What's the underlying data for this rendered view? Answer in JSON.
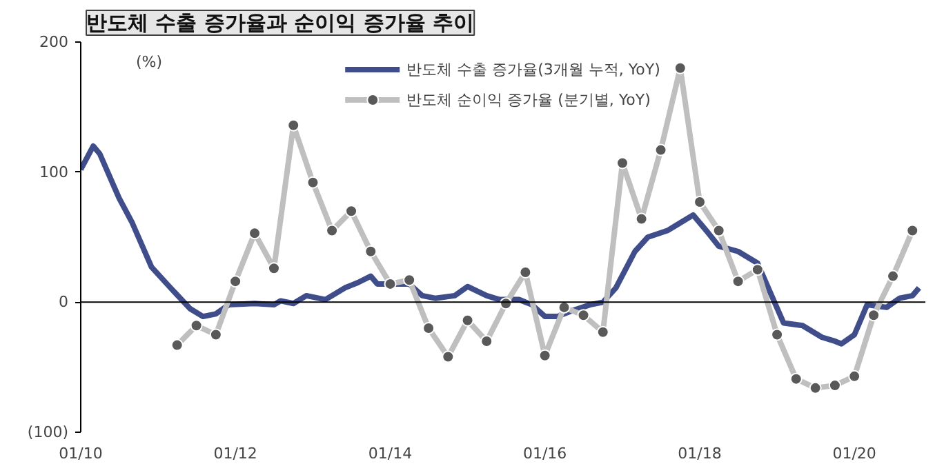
{
  "chart_data": {
    "type": "line",
    "title": "반도체 수출 증가율과 순이익 증가율 추이",
    "ylabel": "(%)",
    "xlim": [
      "2010-01",
      "2020-12"
    ],
    "ylim": [
      -100,
      200
    ],
    "xticks": [
      {
        "value": "2010-01",
        "label": "01/10"
      },
      {
        "value": "2012-01",
        "label": "01/12"
      },
      {
        "value": "2014-01",
        "label": "01/14"
      },
      {
        "value": "2016-01",
        "label": "01/16"
      },
      {
        "value": "2018-01",
        "label": "01/18"
      },
      {
        "value": "2020-01",
        "label": "01/20"
      }
    ],
    "yticks": [
      {
        "value": -100,
        "label": "(100)"
      },
      0,
      100,
      200
    ],
    "grid": false,
    "legend": "top",
    "ref_lines": [
      {
        "axis": "y",
        "value": 0
      }
    ],
    "series": [
      {
        "name": "반도체 수출 증가율(3개월 누적, YoY)",
        "color": "#3f4d8a",
        "marker": "none",
        "x": [
          "2010-01",
          "2010-03",
          "2010-04",
          "2010-07",
          "2010-09",
          "2010-12",
          "2011-03",
          "2011-06",
          "2011-08",
          "2011-10",
          "2011-12",
          "2012-04",
          "2012-07",
          "2012-08",
          "2012-10",
          "2012-12",
          "2013-03",
          "2013-06",
          "2013-08",
          "2013-10",
          "2013-11",
          "2014-01",
          "2014-04",
          "2014-06",
          "2014-08",
          "2014-11",
          "2015-01",
          "2015-04",
          "2015-06",
          "2015-09",
          "2015-11",
          "2016-01",
          "2016-03",
          "2016-05",
          "2016-08",
          "2016-10",
          "2016-12",
          "2017-03",
          "2017-05",
          "2017-08",
          "2017-10",
          "2017-12",
          "2018-02",
          "2018-04",
          "2018-07",
          "2018-10",
          "2018-12",
          "2019-02",
          "2019-05",
          "2019-08",
          "2019-10",
          "2019-11",
          "2020-01",
          "2020-03",
          "2020-06",
          "2020-08",
          "2020-10",
          "2020-11"
        ],
        "values": [
          102,
          120,
          114,
          80,
          61,
          27,
          11,
          -5,
          -11,
          -9,
          -2,
          -1,
          -2,
          1,
          -1,
          5,
          2,
          11,
          15,
          20,
          14,
          14,
          14,
          5,
          3,
          5,
          12,
          5,
          2,
          2,
          -2,
          -11,
          -11,
          -7,
          -2,
          0,
          11,
          39,
          50,
          55,
          61,
          67,
          55,
          43,
          39,
          30,
          7,
          -16,
          -18,
          -27,
          -30,
          -32,
          -25,
          -2,
          -4,
          3,
          5,
          11
        ]
      },
      {
        "name": "반도체 순이익 증가율 (분기별, YoY)",
        "color": "#bfbfbf",
        "marker": "circle",
        "x": [
          "2011-04",
          "2011-07",
          "2011-10",
          "2012-01",
          "2012-04",
          "2012-07",
          "2012-10",
          "2013-01",
          "2013-04",
          "2013-07",
          "2013-10",
          "2014-01",
          "2014-04",
          "2014-07",
          "2014-10",
          "2015-01",
          "2015-04",
          "2015-07",
          "2015-10",
          "2016-01",
          "2016-04",
          "2016-07",
          "2016-10",
          "2017-01",
          "2017-04",
          "2017-07",
          "2017-10",
          "2018-01",
          "2018-04",
          "2018-07",
          "2018-10",
          "2019-01",
          "2019-04",
          "2019-07",
          "2019-10",
          "2020-01",
          "2020-04",
          "2020-07",
          "2020-10"
        ],
        "values": [
          -33,
          -18,
          -25,
          16,
          53,
          26,
          136,
          92,
          55,
          70,
          39,
          14,
          17,
          -20,
          -42,
          -14,
          -30,
          -1,
          23,
          -41,
          -4,
          -10,
          -23,
          107,
          64,
          117,
          180,
          77,
          55,
          16,
          25,
          -25,
          -59,
          -66,
          -64,
          -57,
          -10,
          20,
          55
        ]
      }
    ]
  }
}
